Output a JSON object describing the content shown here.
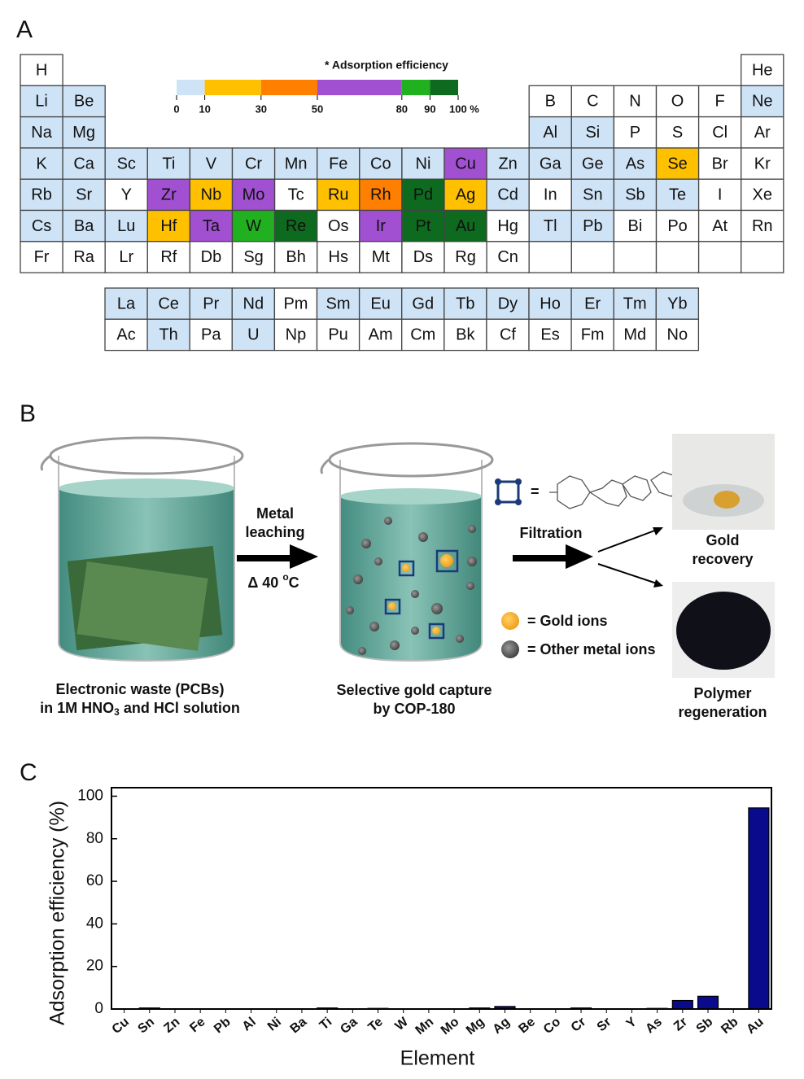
{
  "panel_a": {
    "label": "A",
    "legend_title": "* Adsorption efficiency",
    "legend_ticks": [
      0,
      10,
      30,
      50,
      80,
      90,
      {
        "value": 100,
        "label": "100 %"
      }
    ],
    "legend_colors": [
      "#cfe3f7",
      "#ffc000",
      "#ff8000",
      "#a050d0",
      "#20b020",
      "#0e6a1e"
    ],
    "palette": {
      "w": "#ffffff",
      "b": "#cfe3f7",
      "y": "#ffc000",
      "o": "#ff8000",
      "p": "#a050d0",
      "g": "#20b020",
      "d": "#0e6a1e"
    },
    "periodic_table": {
      "rows": [
        [
          "H",
          "He"
        ],
        [
          "Li",
          "Be",
          "B",
          "C",
          "N",
          "O",
          "F",
          "Ne"
        ],
        [
          "Na",
          "Mg",
          "Al",
          "Si",
          "P",
          "S",
          "Cl",
          "Ar"
        ],
        [
          "K",
          "Ca",
          "Sc",
          "Ti",
          "V",
          "Cr",
          "Mn",
          "Fe",
          "Co",
          "Ni",
          "Cu",
          "Zn",
          "Ga",
          "Ge",
          "As",
          "Se",
          "Br",
          "Kr"
        ],
        [
          "Rb",
          "Sr",
          "Y",
          "Zr",
          "Nb",
          "Mo",
          "Tc",
          "Ru",
          "Rh",
          "Pd",
          "Ag",
          "Cd",
          "In",
          "Sn",
          "Sb",
          "Te",
          "I",
          "Xe"
        ],
        [
          "Cs",
          "Ba",
          "Lu",
          "Hf",
          "Ta",
          "W",
          "Re",
          "Os",
          "Ir",
          "Pt",
          "Au",
          "Hg",
          "Tl",
          "Pb",
          "Bi",
          "Po",
          "At",
          "Rn"
        ],
        [
          "Fr",
          "Ra",
          "Lr",
          "Rf",
          "Db",
          "Sg",
          "Bh",
          "Hs",
          "Mt",
          "Ds",
          "Rg",
          "Cn"
        ]
      ],
      "fills": [
        "ww",
        "bbwwwwwb",
        "bbbbwwww",
        "bbbbbbbbbbpbbbbyww",
        "bbwpypwyodybwbbbww",
        "bbbypgdwpddwbbwwww",
        "wwwwwwwwwwww"
      ]
    },
    "f_block": {
      "rows": [
        [
          "La",
          "Ce",
          "Pr",
          "Nd",
          "Pm",
          "Sm",
          "Eu",
          "Gd",
          "Tb",
          "Dy",
          "Ho",
          "Er",
          "Tm",
          "Yb"
        ],
        [
          "Ac",
          "Th",
          "Pa",
          "U",
          "Np",
          "Pu",
          "Am",
          "Cm",
          "Bk",
          "Cf",
          "Es",
          "Fm",
          "Md",
          "No"
        ]
      ],
      "fills": [
        "bbbbwbbbbbbbbb",
        "wbwbwwwwwwwwww"
      ]
    }
  },
  "panel_b": {
    "label": "B",
    "step_1_line1": "Metal",
    "step_1_line2": "leaching",
    "temp_a": "Δ 40 ",
    "temp_sup": "o",
    "temp_b": "C",
    "step_2": "Filtration",
    "equals": "=",
    "legend_gold": "= Gold ions",
    "legend_other": "= Other metal ions",
    "caption_1_line1": "Electronic waste (PCBs)",
    "caption_1_line2_a": "in 1M HNO",
    "caption_1_line2_sub": "3",
    "caption_1_line2_b": " and HCl solution",
    "caption_2_line1": "Selective gold capture",
    "caption_2_line2": "by COP-180",
    "result_1_line1": "Gold",
    "result_1_line2": "recovery",
    "result_2_line1": "Polymer",
    "result_2_line2": "regeneration"
  },
  "chart_data": {
    "type": "bar",
    "label": "C",
    "xlabel": "Element",
    "ylabel": "Adsorption efficiency (%)",
    "categories": [
      "Cu",
      "Sn",
      "Zn",
      "Fe",
      "Pb",
      "Al",
      "Ni",
      "Ba",
      "Ti",
      "Ga",
      "Te",
      "W",
      "Mn",
      "Mo",
      "Mg",
      "Ag",
      "Be",
      "Co",
      "Cr",
      "Sr",
      "Y",
      "As",
      "Zr",
      "Sb",
      "Rb",
      "Au"
    ],
    "values": [
      0,
      0.5,
      0,
      0,
      0,
      0,
      0,
      0,
      0.5,
      0,
      0.3,
      0,
      0,
      0,
      0.5,
      1.2,
      0,
      0,
      0.5,
      0,
      0,
      0.3,
      4,
      6,
      0,
      94.5
    ],
    "color": "#0a0a8c",
    "ylim": [
      0,
      104
    ],
    "yticks": [
      0,
      20,
      40,
      60,
      80,
      100
    ]
  }
}
